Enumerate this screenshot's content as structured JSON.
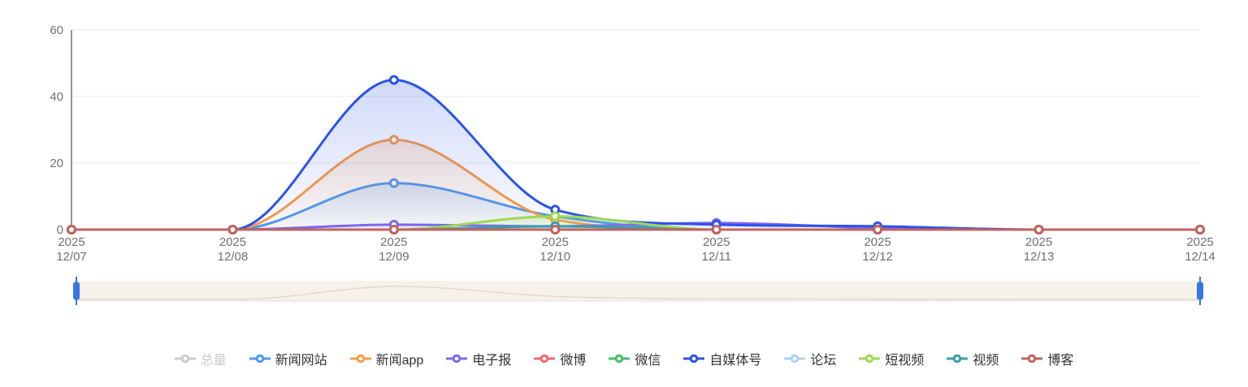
{
  "chart_data": {
    "type": "area",
    "title": "",
    "year_label": "2025",
    "categories": [
      "12/07",
      "12/08",
      "12/09",
      "12/10",
      "12/11",
      "12/12",
      "12/13",
      "12/14"
    ],
    "ylim": [
      0,
      60
    ],
    "yticks": [
      0,
      20,
      40,
      60
    ],
    "grid_on": true,
    "legend_position": "bottom",
    "colors": {
      "axis_text": "#6E7079",
      "axis_line": "#6E7079",
      "grid_line": "#E6E8EB",
      "legend_text": "#333333",
      "legend_disabled": "#CCCCCC"
    },
    "series": [
      {
        "name": "总量",
        "color": "#CCCCCC",
        "disabled": true
      },
      {
        "name": "新闻网站",
        "color": "#4A9AF2",
        "values": [
          0,
          0,
          14,
          4,
          0,
          0,
          0,
          0
        ]
      },
      {
        "name": "新闻app",
        "color": "#FA9C45",
        "values": [
          0,
          0,
          27,
          3,
          0,
          0,
          0,
          0
        ]
      },
      {
        "name": "电子报",
        "color": "#7D68EF",
        "values": [
          0,
          0,
          1.5,
          1,
          2,
          0.5,
          0,
          0
        ]
      },
      {
        "name": "微博",
        "color": "#F46A6A",
        "values": [
          0,
          0,
          0,
          0,
          0,
          0,
          0,
          0
        ]
      },
      {
        "name": "微信",
        "color": "#42BE6A",
        "values": [
          0,
          0,
          0,
          0,
          0,
          0,
          0,
          0
        ]
      },
      {
        "name": "自媒体号",
        "color": "#2C53E8",
        "values": [
          0,
          0,
          45,
          6,
          1.5,
          1,
          0,
          0
        ]
      },
      {
        "name": "论坛",
        "color": "#A9D4F7",
        "values": [
          0,
          0,
          0,
          0,
          0,
          0,
          0,
          0
        ]
      },
      {
        "name": "短视频",
        "color": "#9EDA52",
        "values": [
          0,
          0,
          0,
          4,
          0,
          0,
          0,
          0
        ]
      },
      {
        "name": "视频",
        "color": "#399FA9",
        "values": [
          0,
          0,
          0,
          1,
          0,
          0,
          0,
          0
        ]
      },
      {
        "name": "博客",
        "color": "#C5625E",
        "values": [
          0,
          0,
          0,
          0,
          0,
          0,
          0,
          0
        ]
      }
    ]
  },
  "datazoom": {
    "track_color": "#F7F2E9",
    "border_color": "#EAE3D6",
    "shadow_color": "#DAD4C8",
    "handle_color": "#3578E5"
  }
}
